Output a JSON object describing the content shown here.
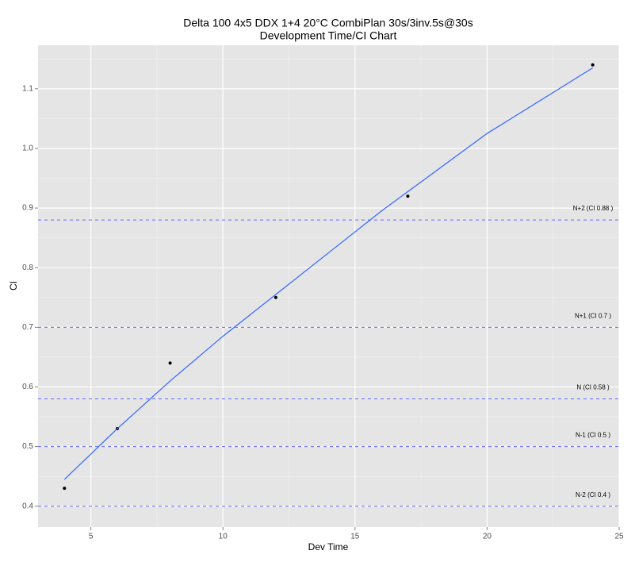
{
  "chart_data": {
    "type": "scatter",
    "title": "Delta 100 4x5 DDX 1+4 20°C CombiPlan 30s/3inv.5s@30s",
    "subtitle": "Development Time/CI Chart",
    "x_label": "Dev Time",
    "y_label": "CI",
    "xlim": [
      3,
      25
    ],
    "ylim": [
      0.365,
      1.173
    ],
    "xticks": [
      5,
      10,
      15,
      20,
      25
    ],
    "yticks": [
      0.4,
      0.5,
      0.6,
      0.7,
      0.8,
      0.9,
      {
        "value": 1,
        "label": "1.0"
      },
      1.1
    ],
    "xminor": [
      7.5,
      12.5,
      17.5,
      22.5
    ],
    "yminor": [
      0.45,
      0.55,
      0.65,
      0.75,
      0.85,
      0.95,
      1.05,
      1.15
    ],
    "grid": true,
    "series": [
      {
        "kind": "points",
        "color": "#000000",
        "x": [
          4,
          6,
          8,
          12,
          17,
          24
        ],
        "values": [
          0.43,
          0.53,
          0.64,
          0.75,
          0.92,
          1.14
        ]
      },
      {
        "kind": "line",
        "color": "#3366ff",
        "x": [
          4,
          6,
          8,
          10,
          12,
          14,
          16,
          18,
          20,
          22,
          24
        ],
        "values": [
          0.445,
          0.53,
          0.61,
          0.685,
          0.755,
          0.825,
          0.895,
          0.96,
          1.025,
          1.08,
          1.135
        ]
      }
    ],
    "hlines": [
      {
        "value": 0.88,
        "label": "N+2 (CI 0.88 )"
      },
      {
        "value": 0.7,
        "label": "N+1 (CI 0.7 )"
      },
      {
        "value": 0.58,
        "label": "N (CI 0.58 )"
      },
      {
        "value": 0.5,
        "label": "N-1 (CI 0.5 )"
      },
      {
        "value": 0.4,
        "label": "N-2 (CI 0.4 )"
      }
    ],
    "hline_color": "#6666ff"
  }
}
